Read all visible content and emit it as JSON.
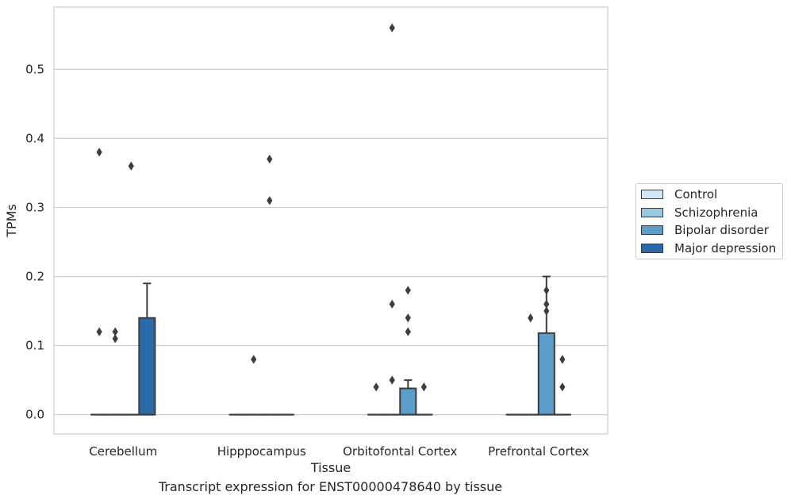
{
  "chart_data": {
    "type": "box",
    "xlabel": "Tissue",
    "ylabel": "TPMs",
    "caption": "Transcript expression for ENST00000478640 by tissue",
    "categories": [
      "Cerebellum",
      "Hipppocampus",
      "Orbitofontal Cortex",
      "Prefrontal Cortex"
    ],
    "ylim": [
      -0.028,
      0.59
    ],
    "yticks": [
      "0.0",
      "0.1",
      "0.2",
      "0.3",
      "0.4",
      "0.5"
    ],
    "grid": "horizontal",
    "legend_position": "right",
    "series": [
      {
        "name": "Control",
        "color": "#d3e4f3",
        "boxes": [
          {
            "q1": 0,
            "median": 0,
            "q3": 0,
            "whisker_low": 0,
            "whisker_high": 0,
            "outliers": [
              0.38,
              0.12
            ]
          },
          {
            "q1": 0,
            "median": 0,
            "q3": 0,
            "whisker_low": 0,
            "whisker_high": 0,
            "outliers": []
          },
          {
            "q1": 0,
            "median": 0,
            "q3": 0,
            "whisker_low": 0,
            "whisker_high": 0,
            "outliers": [
              0.04
            ]
          },
          {
            "q1": 0,
            "median": 0,
            "q3": 0,
            "whisker_low": 0,
            "whisker_high": 0,
            "outliers": []
          }
        ]
      },
      {
        "name": "Schizophrenia",
        "color": "#9ac8e0",
        "boxes": [
          {
            "q1": 0,
            "median": 0,
            "q3": 0,
            "whisker_low": 0,
            "whisker_high": 0,
            "outliers": [
              0.12,
              0.11
            ]
          },
          {
            "q1": 0,
            "median": 0,
            "q3": 0,
            "whisker_low": 0,
            "whisker_high": 0,
            "outliers": [
              0.08
            ]
          },
          {
            "q1": 0,
            "median": 0,
            "q3": 0,
            "whisker_low": 0,
            "whisker_high": 0,
            "outliers": [
              0.56,
              0.16,
              0.05
            ]
          },
          {
            "q1": 0,
            "median": 0,
            "q3": 0,
            "whisker_low": 0,
            "whisker_high": 0,
            "outliers": [
              0.14
            ]
          }
        ]
      },
      {
        "name": "Bipolar disorder",
        "color": "#5a9ec9",
        "boxes": [
          {
            "q1": 0,
            "median": 0,
            "q3": 0,
            "whisker_low": 0,
            "whisker_high": 0,
            "outliers": [
              0.36
            ]
          },
          {
            "q1": 0,
            "median": 0,
            "q3": 0,
            "whisker_low": 0,
            "whisker_high": 0,
            "outliers": [
              0.37,
              0.31
            ]
          },
          {
            "q1": 0,
            "median": 0,
            "q3": 0.038,
            "whisker_low": 0,
            "whisker_high": 0.05,
            "outliers": [
              0.18,
              0.14,
              0.12
            ]
          },
          {
            "q1": 0,
            "median": 0,
            "q3": 0.118,
            "whisker_low": 0,
            "whisker_high": 0.2,
            "outliers": [
              0.18,
              0.16,
              0.15
            ]
          }
        ]
      },
      {
        "name": "Major depression",
        "color": "#2b6aa8",
        "boxes": [
          {
            "q1": 0,
            "median": 0,
            "q3": 0.14,
            "whisker_low": 0,
            "whisker_high": 0.19,
            "outliers": []
          },
          {
            "q1": 0,
            "median": 0,
            "q3": 0,
            "whisker_low": 0,
            "whisker_high": 0,
            "outliers": []
          },
          {
            "q1": 0,
            "median": 0,
            "q3": 0,
            "whisker_low": 0,
            "whisker_high": 0,
            "outliers": [
              0.04
            ]
          },
          {
            "q1": 0,
            "median": 0,
            "q3": 0,
            "whisker_low": 0,
            "whisker_high": 0,
            "outliers": [
              0.08,
              0.04
            ]
          }
        ]
      }
    ]
  }
}
